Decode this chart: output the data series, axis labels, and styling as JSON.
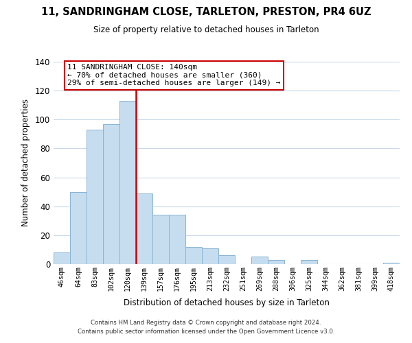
{
  "title": "11, SANDRINGHAM CLOSE, TARLETON, PRESTON, PR4 6UZ",
  "subtitle": "Size of property relative to detached houses in Tarleton",
  "xlabel": "Distribution of detached houses by size in Tarleton",
  "ylabel": "Number of detached properties",
  "bar_color": "#c5ddef",
  "bar_edge_color": "#8ab4d4",
  "vline_color": "#cc0000",
  "categories": [
    "46sqm",
    "64sqm",
    "83sqm",
    "102sqm",
    "120sqm",
    "139sqm",
    "157sqm",
    "176sqm",
    "195sqm",
    "213sqm",
    "232sqm",
    "251sqm",
    "269sqm",
    "288sqm",
    "306sqm",
    "325sqm",
    "344sqm",
    "362sqm",
    "381sqm",
    "399sqm",
    "418sqm"
  ],
  "values": [
    8,
    50,
    93,
    97,
    113,
    49,
    34,
    34,
    12,
    11,
    6,
    0,
    5,
    3,
    0,
    3,
    0,
    0,
    0,
    0,
    1
  ],
  "ylim": [
    0,
    140
  ],
  "yticks": [
    0,
    20,
    40,
    60,
    80,
    100,
    120,
    140
  ],
  "annotation_title": "11 SANDRINGHAM CLOSE: 140sqm",
  "annotation_line1": "← 70% of detached houses are smaller (360)",
  "annotation_line2": "29% of semi-detached houses are larger (149) →",
  "footer_line1": "Contains HM Land Registry data © Crown copyright and database right 2024.",
  "footer_line2": "Contains public sector information licensed under the Open Government Licence v3.0.",
  "background_color": "#ffffff",
  "grid_color": "#c8d8e8"
}
